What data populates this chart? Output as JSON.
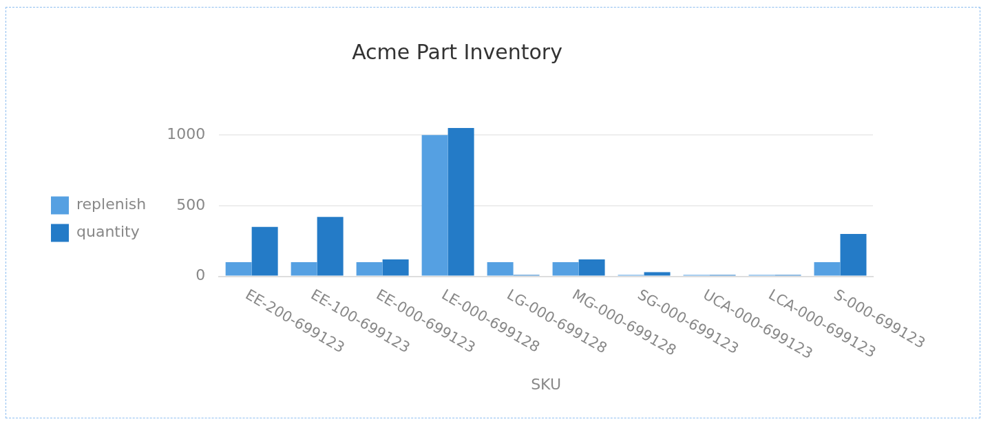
{
  "chart_data": {
    "type": "bar",
    "title": "Acme Part Inventory",
    "xlabel": "SKU",
    "categories": [
      "EE-200-699123",
      "EE-100-699123",
      "EE-000-699123",
      "LE-000-699128",
      "LG-000-699128",
      "MG-000-699128",
      "SG-000-699123",
      "UCA-000-699123",
      "LCA-000-699123",
      "S-000-699123"
    ],
    "series": [
      {
        "name": "replenish",
        "color": "#55a0e2",
        "values": [
          100,
          100,
          100,
          1000,
          100,
          100,
          10,
          10,
          10,
          100
        ]
      },
      {
        "name": "quantity",
        "color": "#247bc7",
        "values": [
          350,
          420,
          120,
          1050,
          10,
          120,
          30,
          10,
          10,
          300
        ]
      }
    ],
    "ylim": [
      0,
      1050
    ],
    "yticks": [
      0,
      500,
      1000
    ],
    "grid": "y",
    "legend": "left"
  }
}
